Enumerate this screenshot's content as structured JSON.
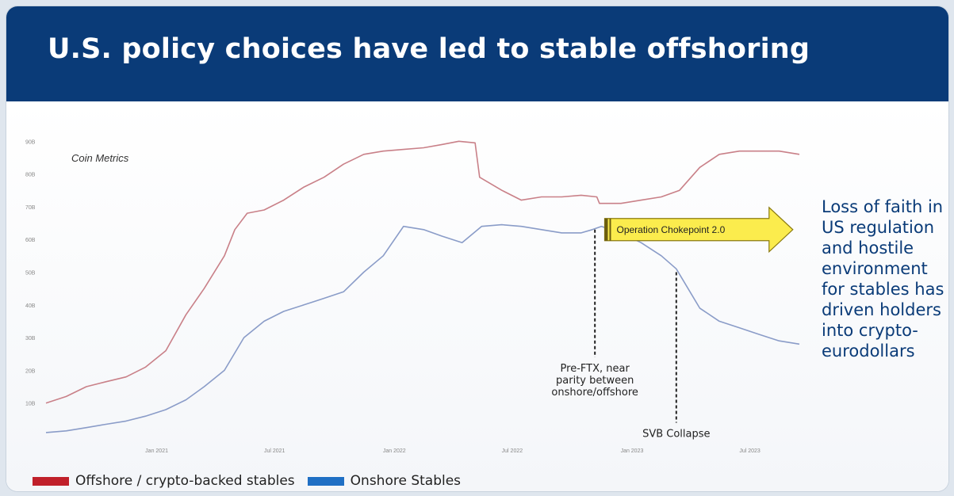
{
  "title": "U.S. policy choices have led to stable offshoring",
  "side_note": "Loss of faith in US regulation and hostile environment for stables has driven holders into crypto-eurodollars",
  "colors": {
    "header_bg": "#0a3b78",
    "offshore": "#c0202a",
    "onshore": "#1f6fc4",
    "offshore_line": "#c98088",
    "onshore_line": "#8a9cc8",
    "arrow_fill": "#fbec4d"
  },
  "chart_data": {
    "type": "line",
    "source_label": "Coin Metrics",
    "y_ticks": [
      "10B",
      "20B",
      "30B",
      "40B",
      "50B",
      "60B",
      "70B",
      "80B",
      "90B"
    ],
    "y_tick_values": [
      10,
      20,
      30,
      40,
      50,
      60,
      70,
      80,
      90
    ],
    "ylim": [
      0,
      92
    ],
    "x_ticks": [
      "Jan 2021",
      "Jul 2021",
      "Jan 2022",
      "Jul 2022",
      "Jan 2023",
      "Jul 2023"
    ],
    "x_tick_values": [
      "2021-01-01",
      "2021-07-01",
      "2022-01-01",
      "2022-07-01",
      "2023-01-01",
      "2023-07-01"
    ],
    "xlim": [
      "2020-07-15",
      "2023-09-15"
    ],
    "series": [
      {
        "name": "Offshore / crypto-backed stables",
        "points": [
          [
            "2020-07-15",
            10
          ],
          [
            "2020-08-15",
            12
          ],
          [
            "2020-09-15",
            15
          ],
          [
            "2020-10-15",
            16.5
          ],
          [
            "2020-11-15",
            18
          ],
          [
            "2020-12-15",
            21
          ],
          [
            "2021-01-15",
            26
          ],
          [
            "2021-02-15",
            37
          ],
          [
            "2021-03-15",
            45
          ],
          [
            "2021-04-15",
            55
          ],
          [
            "2021-05-01",
            63
          ],
          [
            "2021-05-20",
            68
          ],
          [
            "2021-06-15",
            69
          ],
          [
            "2021-07-15",
            72
          ],
          [
            "2021-08-15",
            76
          ],
          [
            "2021-09-15",
            79
          ],
          [
            "2021-10-15",
            83
          ],
          [
            "2021-11-15",
            86
          ],
          [
            "2021-12-15",
            87
          ],
          [
            "2022-01-15",
            87.5
          ],
          [
            "2022-02-15",
            88
          ],
          [
            "2022-03-15",
            89
          ],
          [
            "2022-04-10",
            90
          ],
          [
            "2022-05-05",
            89.5
          ],
          [
            "2022-05-12",
            79
          ],
          [
            "2022-06-15",
            75
          ],
          [
            "2022-07-15",
            72
          ],
          [
            "2022-08-15",
            73
          ],
          [
            "2022-09-15",
            73
          ],
          [
            "2022-10-15",
            73.5
          ],
          [
            "2022-11-08",
            73
          ],
          [
            "2022-11-12",
            71
          ],
          [
            "2022-12-15",
            71
          ],
          [
            "2023-01-15",
            72
          ],
          [
            "2023-02-15",
            73
          ],
          [
            "2023-03-15",
            75
          ],
          [
            "2023-04-15",
            82
          ],
          [
            "2023-05-15",
            86
          ],
          [
            "2023-06-15",
            87
          ],
          [
            "2023-07-15",
            87
          ],
          [
            "2023-08-15",
            87
          ],
          [
            "2023-09-15",
            86
          ]
        ]
      },
      {
        "name": "Onshore Stables",
        "points": [
          [
            "2020-07-15",
            1
          ],
          [
            "2020-08-15",
            1.5
          ],
          [
            "2020-09-15",
            2.5
          ],
          [
            "2020-10-15",
            3.5
          ],
          [
            "2020-11-15",
            4.5
          ],
          [
            "2020-12-15",
            6
          ],
          [
            "2021-01-15",
            8
          ],
          [
            "2021-02-15",
            11
          ],
          [
            "2021-03-15",
            15
          ],
          [
            "2021-04-15",
            20
          ],
          [
            "2021-05-15",
            30
          ],
          [
            "2021-06-15",
            35
          ],
          [
            "2021-07-15",
            38
          ],
          [
            "2021-08-15",
            40
          ],
          [
            "2021-09-15",
            42
          ],
          [
            "2021-10-15",
            44
          ],
          [
            "2021-11-15",
            50
          ],
          [
            "2021-12-15",
            55
          ],
          [
            "2022-01-15",
            64
          ],
          [
            "2022-02-15",
            63
          ],
          [
            "2022-03-15",
            61
          ],
          [
            "2022-04-15",
            59
          ],
          [
            "2022-05-15",
            64
          ],
          [
            "2022-06-15",
            64.5
          ],
          [
            "2022-07-15",
            64
          ],
          [
            "2022-08-15",
            63
          ],
          [
            "2022-09-15",
            62
          ],
          [
            "2022-10-15",
            62
          ],
          [
            "2022-11-01",
            63
          ],
          [
            "2022-11-15",
            64
          ],
          [
            "2022-12-15",
            62
          ],
          [
            "2023-01-15",
            59
          ],
          [
            "2023-02-15",
            55
          ],
          [
            "2023-03-10",
            51
          ],
          [
            "2023-04-15",
            39
          ],
          [
            "2023-05-15",
            35
          ],
          [
            "2023-06-15",
            33
          ],
          [
            "2023-07-15",
            31
          ],
          [
            "2023-08-15",
            29
          ],
          [
            "2023-09-15",
            28
          ]
        ]
      }
    ],
    "annotations": [
      {
        "text": "Operation Chokepoint 2.0",
        "kind": "arrow",
        "x_start": "2022-11-20",
        "x_end": "2023-09-05",
        "y": 63
      },
      {
        "text": [
          "Pre-FTX, near",
          "parity between",
          "onshore/offshore"
        ],
        "kind": "vline",
        "x": "2022-11-05",
        "y_from": 63,
        "y_to": 24
      },
      {
        "text": "SVB Collapse",
        "kind": "vline",
        "x": "2023-03-10",
        "y_from": 50,
        "y_to": 4
      }
    ]
  }
}
